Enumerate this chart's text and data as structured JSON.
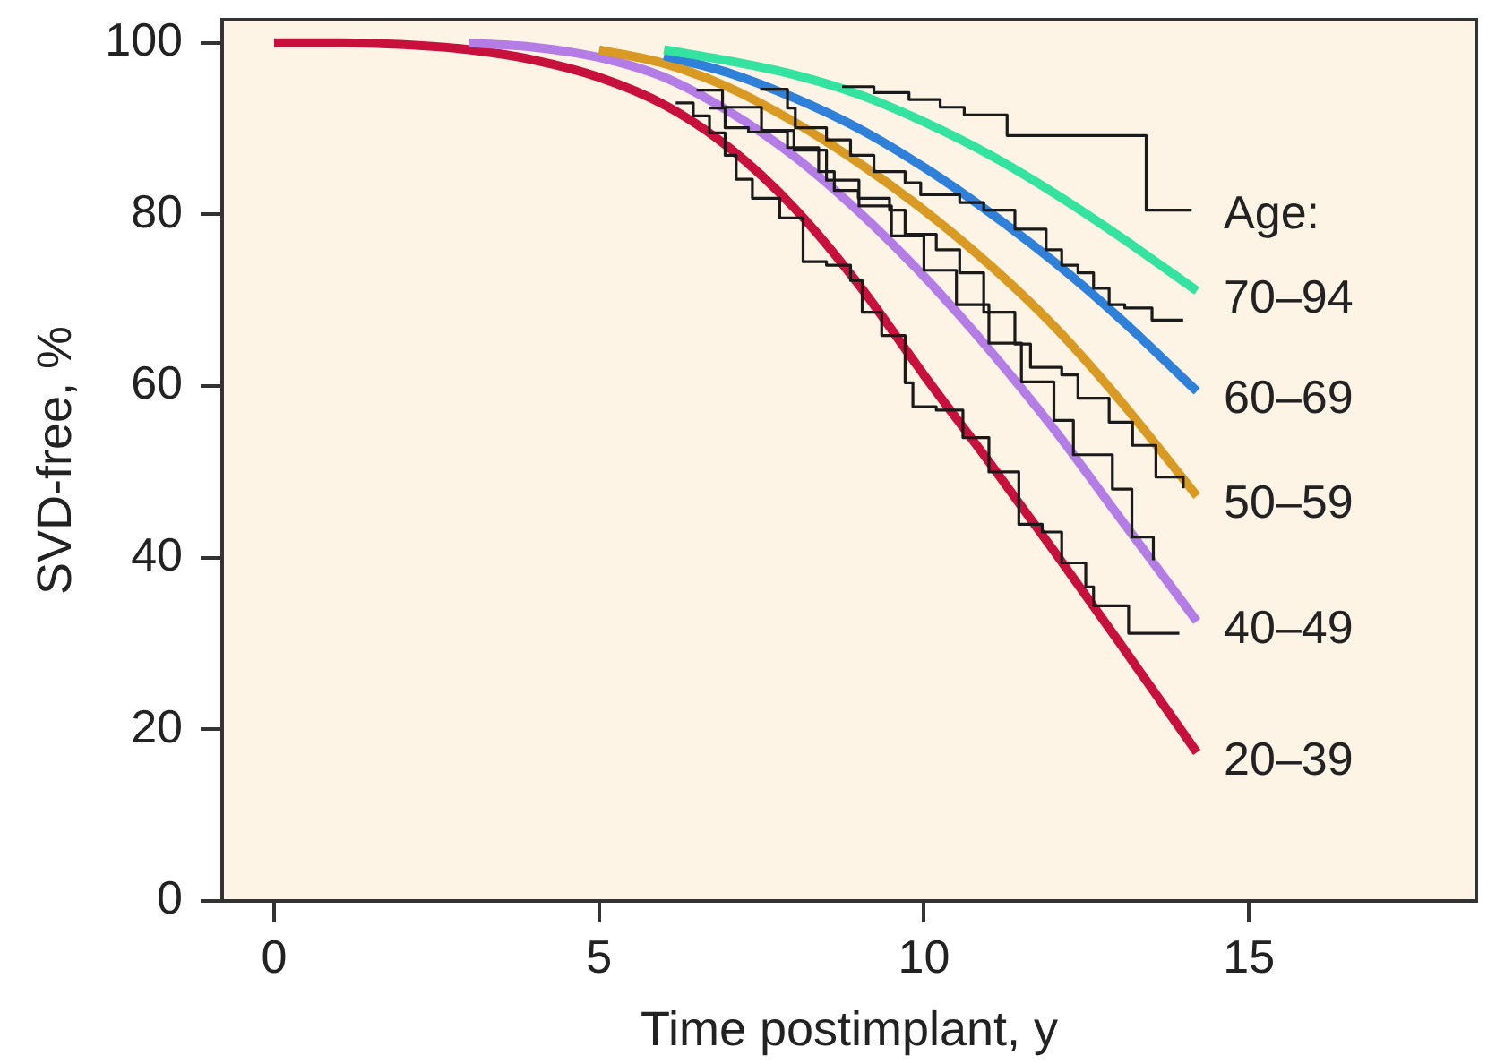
{
  "chart_data": {
    "type": "line",
    "xlabel": "Time postimplant, y",
    "ylabel": "SVD-free, %",
    "legend_title": "Age:",
    "xlim": [
      -0.8,
      18.5
    ],
    "xticks": [
      0,
      5,
      10,
      15
    ],
    "ylim": [
      0,
      102.7
    ],
    "yticks": [
      0,
      20,
      40,
      60,
      80,
      100
    ],
    "grid": false,
    "marker": "none",
    "series": [
      {
        "name": "70–94",
        "color": "#35e3a0",
        "x": [
          6,
          7,
          8,
          9,
          10,
          11,
          12,
          13,
          14.2
        ],
        "values": [
          99.2,
          97.9,
          96.3,
          94.0,
          90.8,
          87.0,
          82.5,
          77.5,
          71.1
        ]
      },
      {
        "name": "60–69",
        "color": "#2e80d8",
        "x": [
          6,
          7,
          8,
          9,
          10,
          11,
          12,
          13,
          14.2
        ],
        "values": [
          98.5,
          96.5,
          93.6,
          90.0,
          85.5,
          80.3,
          74.5,
          68.0,
          59.4
        ]
      },
      {
        "name": "50–59",
        "color": "#d89a22",
        "x": [
          5,
          6,
          7,
          8,
          9,
          10,
          11,
          12,
          13,
          14.2
        ],
        "values": [
          99.2,
          97.6,
          94.8,
          90.8,
          86.0,
          80.5,
          74.2,
          67.0,
          58.5,
          47.2
        ]
      },
      {
        "name": "40–49",
        "color": "#b47de6",
        "x": [
          3,
          4,
          5,
          6,
          7,
          8,
          9,
          10,
          11,
          12,
          13,
          14.2
        ],
        "values": [
          100,
          99.5,
          98.3,
          96.0,
          92.0,
          86.8,
          80.3,
          72.8,
          64.3,
          55.0,
          44.8,
          32.6
        ]
      },
      {
        "name": "20–39",
        "color": "#c8103c",
        "x": [
          0,
          1,
          2,
          3,
          4,
          5,
          6,
          7,
          8,
          9,
          10,
          11,
          12,
          13,
          14.2
        ],
        "values": [
          100,
          100,
          99.8,
          99.2,
          98.0,
          96.0,
          92.8,
          87.8,
          80.8,
          71.8,
          61.3,
          51.2,
          40.8,
          30.2,
          17.3
        ]
      },
      {
        "type": "step",
        "color": "#1a1a1a",
        "x": [
          8.74,
          9.23,
          9.77,
          10.25,
          10.62,
          11.28,
          13.42,
          14.12
        ],
        "values": [
          94.9,
          94.2,
          93.4,
          92.5,
          91.6,
          89.2,
          80.5,
          80.5
        ]
      },
      {
        "type": "step",
        "color": "#1a1a1a",
        "x": [
          7.48,
          7.9,
          8.02,
          8.5,
          8.87,
          9.23,
          9.71,
          9.95,
          10.55,
          10.92,
          11.4,
          11.88,
          12.12,
          12.37,
          12.61,
          12.85,
          13.09,
          13.51,
          13.99
        ],
        "values": [
          94.6,
          92.4,
          90.1,
          88.7,
          86.9,
          85.0,
          83.7,
          82.3,
          81.4,
          80.5,
          78.3,
          75.9,
          74.1,
          73.2,
          71.4,
          69.5,
          69.1,
          67.7,
          67.7
        ]
      },
      {
        "type": "step",
        "color": "#1a1a1a",
        "x": [
          6.69,
          6.94,
          7.3,
          7.9,
          8.38,
          8.62,
          8.99,
          9.47,
          9.71,
          10.19,
          10.55,
          10.92,
          11.4,
          11.64,
          12.12,
          12.37,
          12.85,
          13.21,
          13.57,
          13.99
        ],
        "values": [
          92.4,
          90.1,
          89.6,
          87.8,
          85.0,
          82.8,
          81.9,
          80.5,
          77.7,
          75.9,
          73.2,
          68.6,
          64.9,
          62.2,
          61.3,
          58.6,
          55.8,
          53.1,
          49.4,
          48.1
        ]
      },
      {
        "type": "step",
        "color": "#1a1a1a",
        "x": [
          6.5,
          6.9,
          7.5,
          8.0,
          8.5,
          9.0,
          9.5,
          10.0,
          10.5,
          11.0,
          11.5,
          12.0,
          12.3,
          12.9,
          13.2,
          13.53
        ],
        "values": [
          94.5,
          92.5,
          89.8,
          87.5,
          84.0,
          81.0,
          77.5,
          73.5,
          69.5,
          65.0,
          60.5,
          56.0,
          52.0,
          48.0,
          42.4,
          39.7
        ]
      },
      {
        "type": "step",
        "color": "#1a1a1a",
        "x": [
          6.18,
          6.45,
          6.7,
          6.94,
          7.11,
          7.36,
          7.78,
          8.14,
          8.5,
          8.87,
          9.05,
          9.35,
          9.71,
          9.83,
          10.19,
          10.6,
          11.0,
          11.46,
          11.82,
          12.12,
          12.49,
          12.61,
          13.15,
          13.93
        ],
        "values": [
          93.0,
          91.5,
          89.5,
          86.9,
          84.1,
          81.9,
          79.6,
          74.5,
          74.1,
          72.3,
          68.6,
          65.9,
          60.4,
          57.6,
          57.2,
          54.0,
          50.0,
          43.9,
          43.0,
          39.4,
          36.6,
          34.4,
          31.2,
          31.2
        ]
      }
    ]
  }
}
